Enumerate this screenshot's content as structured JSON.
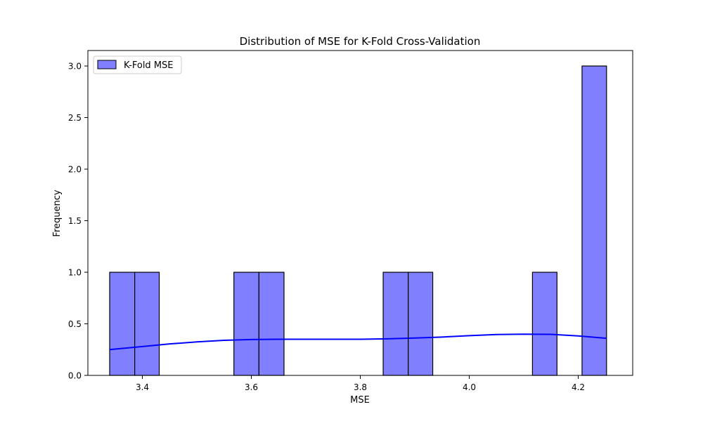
{
  "chart_data": {
    "type": "histogram",
    "title": "Distribution of MSE for K-Fold Cross-Validation",
    "xlabel": "MSE",
    "ylabel": "Frequency",
    "xlim": [
      3.3,
      4.3
    ],
    "ylim": [
      0,
      3.15
    ],
    "xticks": [
      3.4,
      3.6,
      3.8,
      4.0,
      4.2
    ],
    "xtick_labels": [
      "3.4",
      "3.6",
      "3.8",
      "4.0",
      "4.2"
    ],
    "yticks": [
      0,
      0.5,
      1.0,
      1.5,
      2.0,
      2.5,
      3.0
    ],
    "ytick_labels": [
      "0.0",
      "0.5",
      "1.0",
      "1.5",
      "2.0",
      "2.5",
      "3.0"
    ],
    "bin_width": 0.0456,
    "bins": [
      {
        "x0": 3.34,
        "x1": 3.386,
        "count": 1
      },
      {
        "x0": 3.386,
        "x1": 3.431,
        "count": 1
      },
      {
        "x0": 3.568,
        "x1": 3.614,
        "count": 1
      },
      {
        "x0": 3.614,
        "x1": 3.66,
        "count": 1
      },
      {
        "x0": 3.842,
        "x1": 3.888,
        "count": 1
      },
      {
        "x0": 3.888,
        "x1": 3.933,
        "count": 1
      },
      {
        "x0": 4.116,
        "x1": 4.161,
        "count": 1
      },
      {
        "x0": 4.207,
        "x1": 4.252,
        "count": 3
      }
    ],
    "kde": {
      "x": [
        3.34,
        3.4,
        3.45,
        3.5,
        3.55,
        3.6,
        3.65,
        3.7,
        3.75,
        3.8,
        3.85,
        3.9,
        3.95,
        4.0,
        4.05,
        4.1,
        4.15,
        4.2,
        4.252
      ],
      "y": [
        0.25,
        0.28,
        0.305,
        0.325,
        0.34,
        0.348,
        0.35,
        0.35,
        0.35,
        0.35,
        0.355,
        0.362,
        0.372,
        0.385,
        0.396,
        0.4,
        0.398,
        0.383,
        0.36
      ]
    },
    "series": [
      {
        "name": "K-Fold MSE"
      }
    ],
    "legend": {
      "position": "top-left",
      "label": "K-Fold MSE"
    },
    "grid": false,
    "colors": {
      "bar_fill": "#8080ff",
      "bar_edge": "#000000",
      "kde_line": "#0000ff",
      "axis": "#000000"
    }
  }
}
